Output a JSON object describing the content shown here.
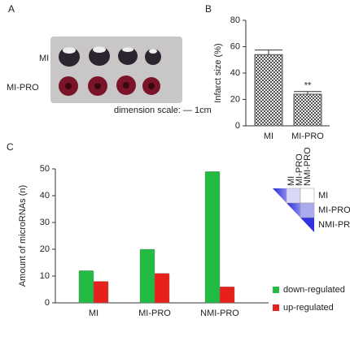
{
  "panels": [
    "A",
    "B",
    "C"
  ],
  "photo": {
    "labels": [
      "MI",
      "MI-PRO"
    ],
    "scale_note": "dimension scale: — 1cm"
  },
  "chart_data": [
    {
      "type": "bar",
      "ylabel": "Infarct size (%)",
      "categories": [
        "MI",
        "MI-PRO"
      ],
      "values": [
        54,
        24
      ],
      "errors": [
        3.5,
        2
      ],
      "annotations": [
        {
          "index": 1,
          "text": "**"
        }
      ],
      "color": "#555555",
      "ylim": [
        0,
        80
      ],
      "yticks": [
        0,
        20,
        40,
        60,
        80
      ]
    },
    {
      "type": "bar",
      "ylabel": "Amount of microRNAs (n)",
      "categories": [
        "MI",
        "MI-PRO",
        "NMI-PRO"
      ],
      "series": [
        {
          "name": "down-regulated",
          "color": "#22bb44",
          "values": [
            12,
            20,
            49
          ]
        },
        {
          "name": "up-regulated",
          "color": "#e8201c",
          "values": [
            8,
            11,
            6
          ]
        }
      ],
      "ylim": [
        0,
        50
      ],
      "yticks": [
        0,
        10,
        20,
        30,
        40,
        50
      ],
      "legend": "lower right",
      "inset_labels": [
        "MI",
        "MI-PRO",
        "NMI-PRO"
      ]
    }
  ]
}
